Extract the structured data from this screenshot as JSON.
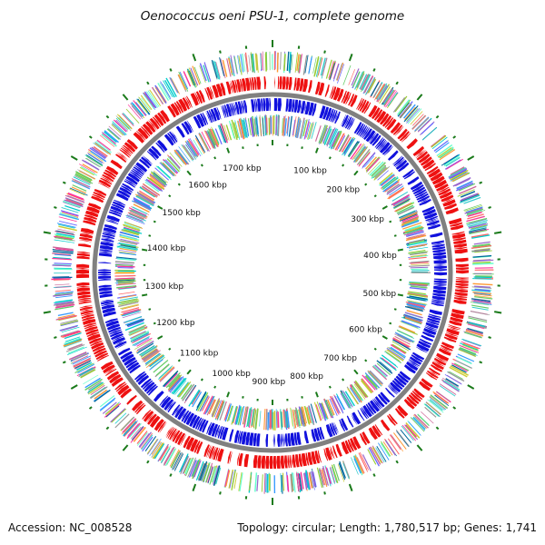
{
  "title": "Oenococcus oeni PSU-1, complete genome",
  "accession_text": "Accession: NC_008528",
  "summary_text": "Topology: circular; Length: 1,780,517 bp; Genes: 1,741",
  "genome": {
    "length_bp": 1780517,
    "topology": "circular",
    "genes": 1741
  },
  "scale_labels": [
    "100 kbp",
    "200 kbp",
    "300 kbp",
    "400 kbp",
    "500 kbp",
    "600 kbp",
    "700 kbp",
    "800 kbp",
    "900 kbp",
    "1000 kbp",
    "1100 kbp",
    "1200 kbp",
    "1300 kbp",
    "1400 kbp",
    "1500 kbp",
    "1600 kbp",
    "1700 kbp"
  ],
  "colors": {
    "forward_cds": "#ee1111",
    "reverse_cds": "#1111dd",
    "backbone": "#808080",
    "tick": "#1a7a1a",
    "cog_palette": [
      "#ff3399",
      "#33cccc",
      "#6666ff",
      "#99cc33",
      "#ff9933",
      "#9966cc",
      "#00cccc",
      "#cc6699",
      "#66cc66",
      "#3399ff",
      "#cccc33",
      "#ff6666",
      "#999999",
      "#006699",
      "#66ffcc"
    ]
  }
}
